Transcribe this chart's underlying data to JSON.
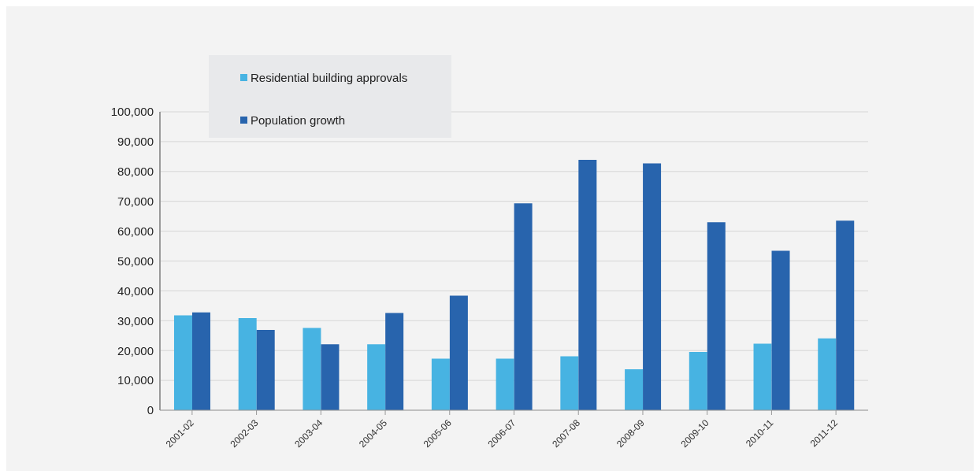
{
  "chart_data": {
    "type": "bar",
    "categories": [
      "2001-02",
      "2002-03",
      "2003-04",
      "2004-05",
      "2005-06",
      "2006-07",
      "2007-08",
      "2008-09",
      "2009-10",
      "2010-11",
      "2011-12"
    ],
    "series": [
      {
        "name": "Residential building approvals",
        "color": "#47b3e2",
        "values": [
          31800,
          30900,
          27600,
          22100,
          17300,
          17300,
          18100,
          13700,
          19500,
          22300,
          24100
        ]
      },
      {
        "name": "Population growth",
        "color": "#2864ad",
        "values": [
          32800,
          26900,
          22100,
          32600,
          38400,
          69300,
          83900,
          82700,
          63000,
          53400,
          63500
        ]
      }
    ],
    "ylim": [
      0,
      100000
    ],
    "yticks": [
      {
        "value": 0,
        "label": "0"
      },
      {
        "value": 10000,
        "label": "10,000"
      },
      {
        "value": 20000,
        "label": "20,000"
      },
      {
        "value": 30000,
        "label": "30,000"
      },
      {
        "value": 40000,
        "label": "40,000"
      },
      {
        "value": 50000,
        "label": "50,000"
      },
      {
        "value": 60000,
        "label": "60,000"
      },
      {
        "value": 70000,
        "label": "70,000"
      },
      {
        "value": 80000,
        "label": "80,000"
      },
      {
        "value": 90000,
        "label": "90,000"
      },
      {
        "value": 100000,
        "label": "100,000"
      }
    ],
    "grid": "y",
    "legend": "top left"
  }
}
